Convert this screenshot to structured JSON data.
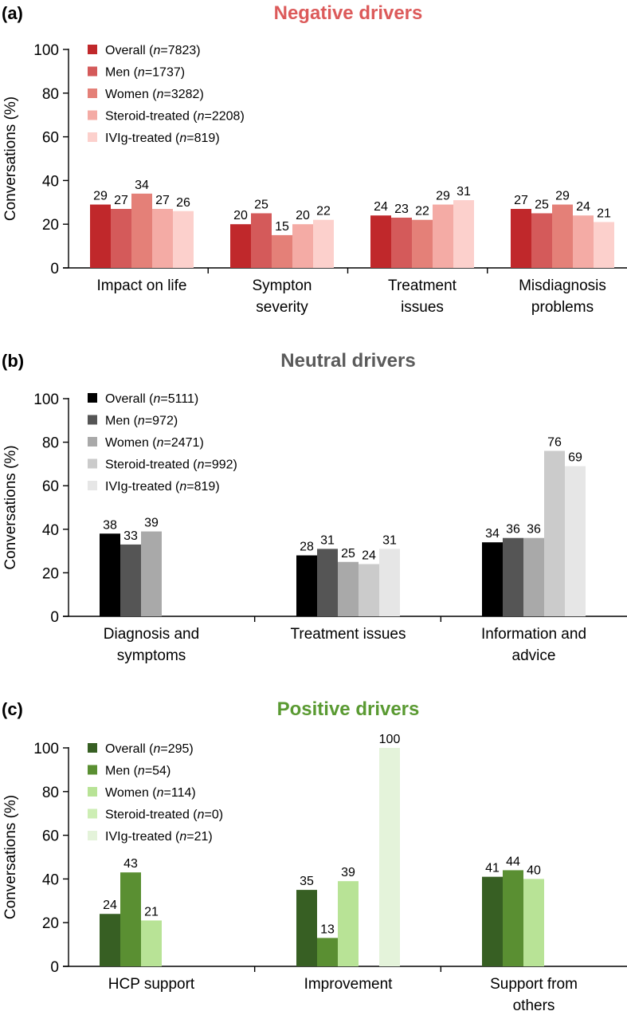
{
  "chart_data": [
    {
      "type": "bar",
      "panel_label": "(a)",
      "title": "Negative drivers",
      "title_color": "#dc5a5a",
      "ylabel": "Conversations (%)",
      "ylim": [
        0,
        100
      ],
      "yticks": [
        0,
        20,
        40,
        60,
        80,
        100
      ],
      "categories": [
        [
          "Impact on life"
        ],
        [
          "Sympton",
          "severity"
        ],
        [
          "Treatment",
          "issues"
        ],
        [
          "Misdiagnosis",
          "problems"
        ]
      ],
      "series": [
        {
          "name": "Overall",
          "n": "7823",
          "color": "#c0282b",
          "values": [
            29,
            20,
            24,
            27
          ]
        },
        {
          "name": "Men",
          "n": "1737",
          "color": "#d45a5a",
          "values": [
            27,
            25,
            23,
            25
          ]
        },
        {
          "name": "Women",
          "n": "3282",
          "color": "#e48078",
          "values": [
            34,
            15,
            22,
            29
          ]
        },
        {
          "name": "Steroid-treated",
          "n": "2208",
          "color": "#f4aba5",
          "values": [
            27,
            20,
            29,
            24
          ]
        },
        {
          "name": "IVIg-treated",
          "n": "819",
          "color": "#fcd0cc",
          "values": [
            26,
            22,
            31,
            21
          ]
        }
      ]
    },
    {
      "type": "bar",
      "panel_label": "(b)",
      "title": "Neutral drivers",
      "title_color": "#5a5a5a",
      "ylabel": "Conversations (%)",
      "ylim": [
        0,
        100
      ],
      "yticks": [
        0,
        20,
        40,
        60,
        80,
        100
      ],
      "categories": [
        [
          "Diagnosis and",
          "symptoms"
        ],
        [
          "Treatment issues"
        ],
        [
          "Information and",
          "advice"
        ]
      ],
      "series": [
        {
          "name": "Overall",
          "n": "5111",
          "color": "#000000",
          "values": [
            38,
            28,
            34
          ]
        },
        {
          "name": "Men",
          "n": "972",
          "color": "#555555",
          "values": [
            33,
            31,
            36
          ]
        },
        {
          "name": "Women",
          "n": "2471",
          "color": "#a9a9a9",
          "values": [
            39,
            25,
            36
          ]
        },
        {
          "name": "Steroid-treated",
          "n": "992",
          "color": "#cbcbcb",
          "values": [
            null,
            24,
            76
          ]
        },
        {
          "name": "IVIg-treated",
          "n": "819",
          "color": "#e6e6e6",
          "values": [
            null,
            31,
            69
          ]
        }
      ]
    },
    {
      "type": "bar",
      "panel_label": "(c)",
      "title": "Positive drivers",
      "title_color": "#5a9a32",
      "ylabel": "Conversations (%)",
      "ylim": [
        0,
        100
      ],
      "yticks": [
        0,
        20,
        40,
        60,
        80,
        100
      ],
      "categories": [
        [
          "HCP support"
        ],
        [
          "Improvement"
        ],
        [
          "Support from",
          "others"
        ]
      ],
      "series": [
        {
          "name": "Overall",
          "n": "295",
          "color": "#375f23",
          "values": [
            24,
            35,
            41
          ]
        },
        {
          "name": "Men",
          "n": "54",
          "color": "#5a8f32",
          "values": [
            43,
            13,
            44
          ]
        },
        {
          "name": "Women",
          "n": "114",
          "color": "#b8e396",
          "values": [
            21,
            39,
            40
          ]
        },
        {
          "name": "Steroid-treated",
          "n": "0",
          "color": "#cdeeb4",
          "values": [
            null,
            null,
            null
          ]
        },
        {
          "name": "IVIg-treated",
          "n": "21",
          "color": "#e4f3da",
          "values": [
            null,
            100,
            null
          ]
        }
      ]
    }
  ]
}
